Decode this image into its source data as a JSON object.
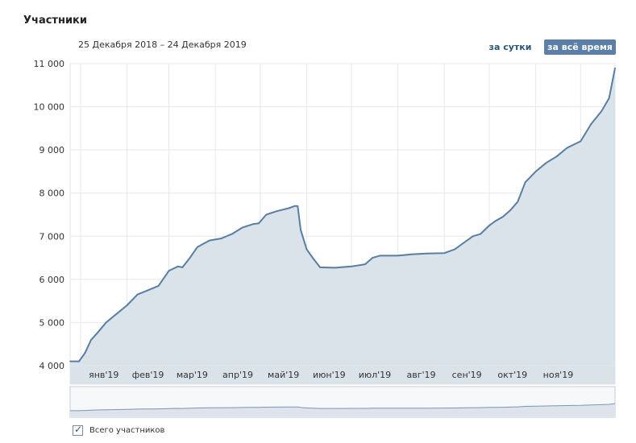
{
  "page": {
    "title": "Участники",
    "date_range": "25 Декабря 2018 – 24 Декабря 2019",
    "buttons": {
      "per_day": "за сутки",
      "all_time": "за всё время"
    },
    "legend_label": "Всего участников",
    "legend_checked": "✓"
  },
  "chart_data": {
    "type": "area",
    "title": "Участники",
    "xlabel": "",
    "ylabel": "",
    "ylim": [
      4000,
      11000
    ],
    "yticks": [
      4000,
      5000,
      6000,
      7000,
      8000,
      9000,
      10000,
      11000
    ],
    "ytick_labels": [
      "4 000",
      "5 000",
      "6 000",
      "7 000",
      "8 000",
      "9 000",
      "10 000",
      "11 000"
    ],
    "x_start": "2018-12-25",
    "x_end": "2019-12-24",
    "month_ticks": [
      {
        "date": "2019-01-01",
        "label": "янв'19"
      },
      {
        "date": "2019-02-01",
        "label": "фев'19"
      },
      {
        "date": "2019-03-01",
        "label": "мар'19"
      },
      {
        "date": "2019-04-01",
        "label": "апр'19"
      },
      {
        "date": "2019-05-01",
        "label": "май'19"
      },
      {
        "date": "2019-06-01",
        "label": "июн'19"
      },
      {
        "date": "2019-07-01",
        "label": "июл'19"
      },
      {
        "date": "2019-08-01",
        "label": "авг'19"
      },
      {
        "date": "2019-09-01",
        "label": "сен'19"
      },
      {
        "date": "2019-10-01",
        "label": "окт'19"
      },
      {
        "date": "2019-11-01",
        "label": "ноя'19"
      },
      {
        "date": "2019-12-01",
        "label": ""
      }
    ],
    "grid": true,
    "colors": {
      "line": "#597da3",
      "fill": "#dae2ea",
      "grid": "#e7e8ec"
    },
    "series": [
      {
        "name": "Всего участников",
        "x": [
          "2018-12-25",
          "2018-12-31",
          "2019-01-04",
          "2019-01-08",
          "2019-01-12",
          "2019-01-18",
          "2019-01-25",
          "2019-02-01",
          "2019-02-08",
          "2019-02-15",
          "2019-02-22",
          "2019-03-01",
          "2019-03-07",
          "2019-03-10",
          "2019-03-15",
          "2019-03-20",
          "2019-03-28",
          "2019-04-05",
          "2019-04-12",
          "2019-04-19",
          "2019-04-26",
          "2019-04-30",
          "2019-05-05",
          "2019-05-12",
          "2019-05-20",
          "2019-05-24",
          "2019-05-26",
          "2019-05-28",
          "2019-06-01",
          "2019-06-05",
          "2019-06-10",
          "2019-06-20",
          "2019-07-01",
          "2019-07-10",
          "2019-07-15",
          "2019-07-20",
          "2019-08-01",
          "2019-08-10",
          "2019-08-20",
          "2019-09-01",
          "2019-09-08",
          "2019-09-12",
          "2019-09-20",
          "2019-09-25",
          "2019-10-01",
          "2019-10-05",
          "2019-10-10",
          "2019-10-15",
          "2019-10-20",
          "2019-10-25",
          "2019-11-01",
          "2019-11-08",
          "2019-11-15",
          "2019-11-22",
          "2019-12-01",
          "2019-12-08",
          "2019-12-15",
          "2019-12-20",
          "2019-12-24"
        ],
        "values": [
          4100,
          4100,
          4300,
          4600,
          4750,
          5000,
          5200,
          5400,
          5650,
          5750,
          5850,
          6200,
          6300,
          6280,
          6500,
          6750,
          6900,
          6950,
          7050,
          7200,
          7280,
          7300,
          7500,
          7580,
          7650,
          7700,
          7700,
          7150,
          6700,
          6500,
          6280,
          6270,
          6300,
          6350,
          6500,
          6550,
          6550,
          6580,
          6600,
          6610,
          6700,
          6800,
          7000,
          7050,
          7250,
          7350,
          7450,
          7600,
          7800,
          8250,
          8500,
          8700,
          8850,
          9050,
          9200,
          9600,
          9900,
          10200,
          10900
        ]
      }
    ]
  }
}
